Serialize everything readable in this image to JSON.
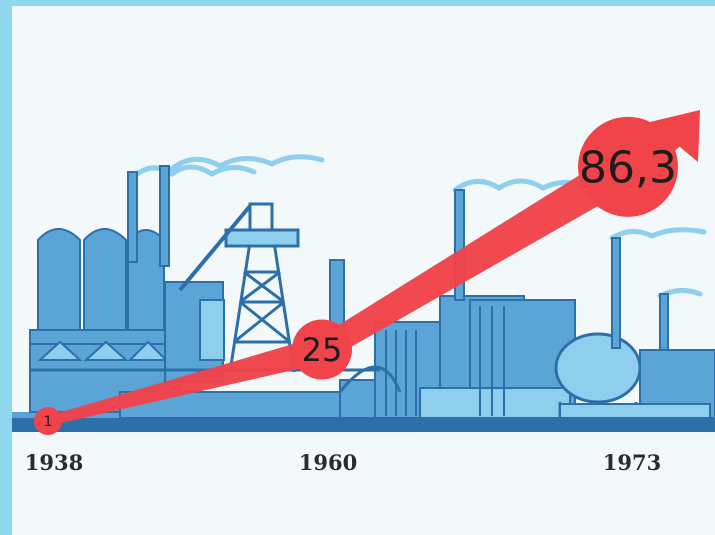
{
  "chart_data": {
    "type": "line",
    "x": [
      "1938",
      "1960",
      "1973"
    ],
    "values": [
      1,
      25,
      86.3
    ],
    "value_labels": [
      "1",
      "25",
      "86,3"
    ],
    "title": "",
    "xlabel": "",
    "ylabel": "",
    "colors": {
      "series": "#f0434a",
      "industry": "#5aa4d6",
      "industry_dark": "#2d6fa8",
      "frame": "#8fd7ee"
    }
  },
  "scene": {
    "background_icon": "industrial-factory-skyline"
  }
}
